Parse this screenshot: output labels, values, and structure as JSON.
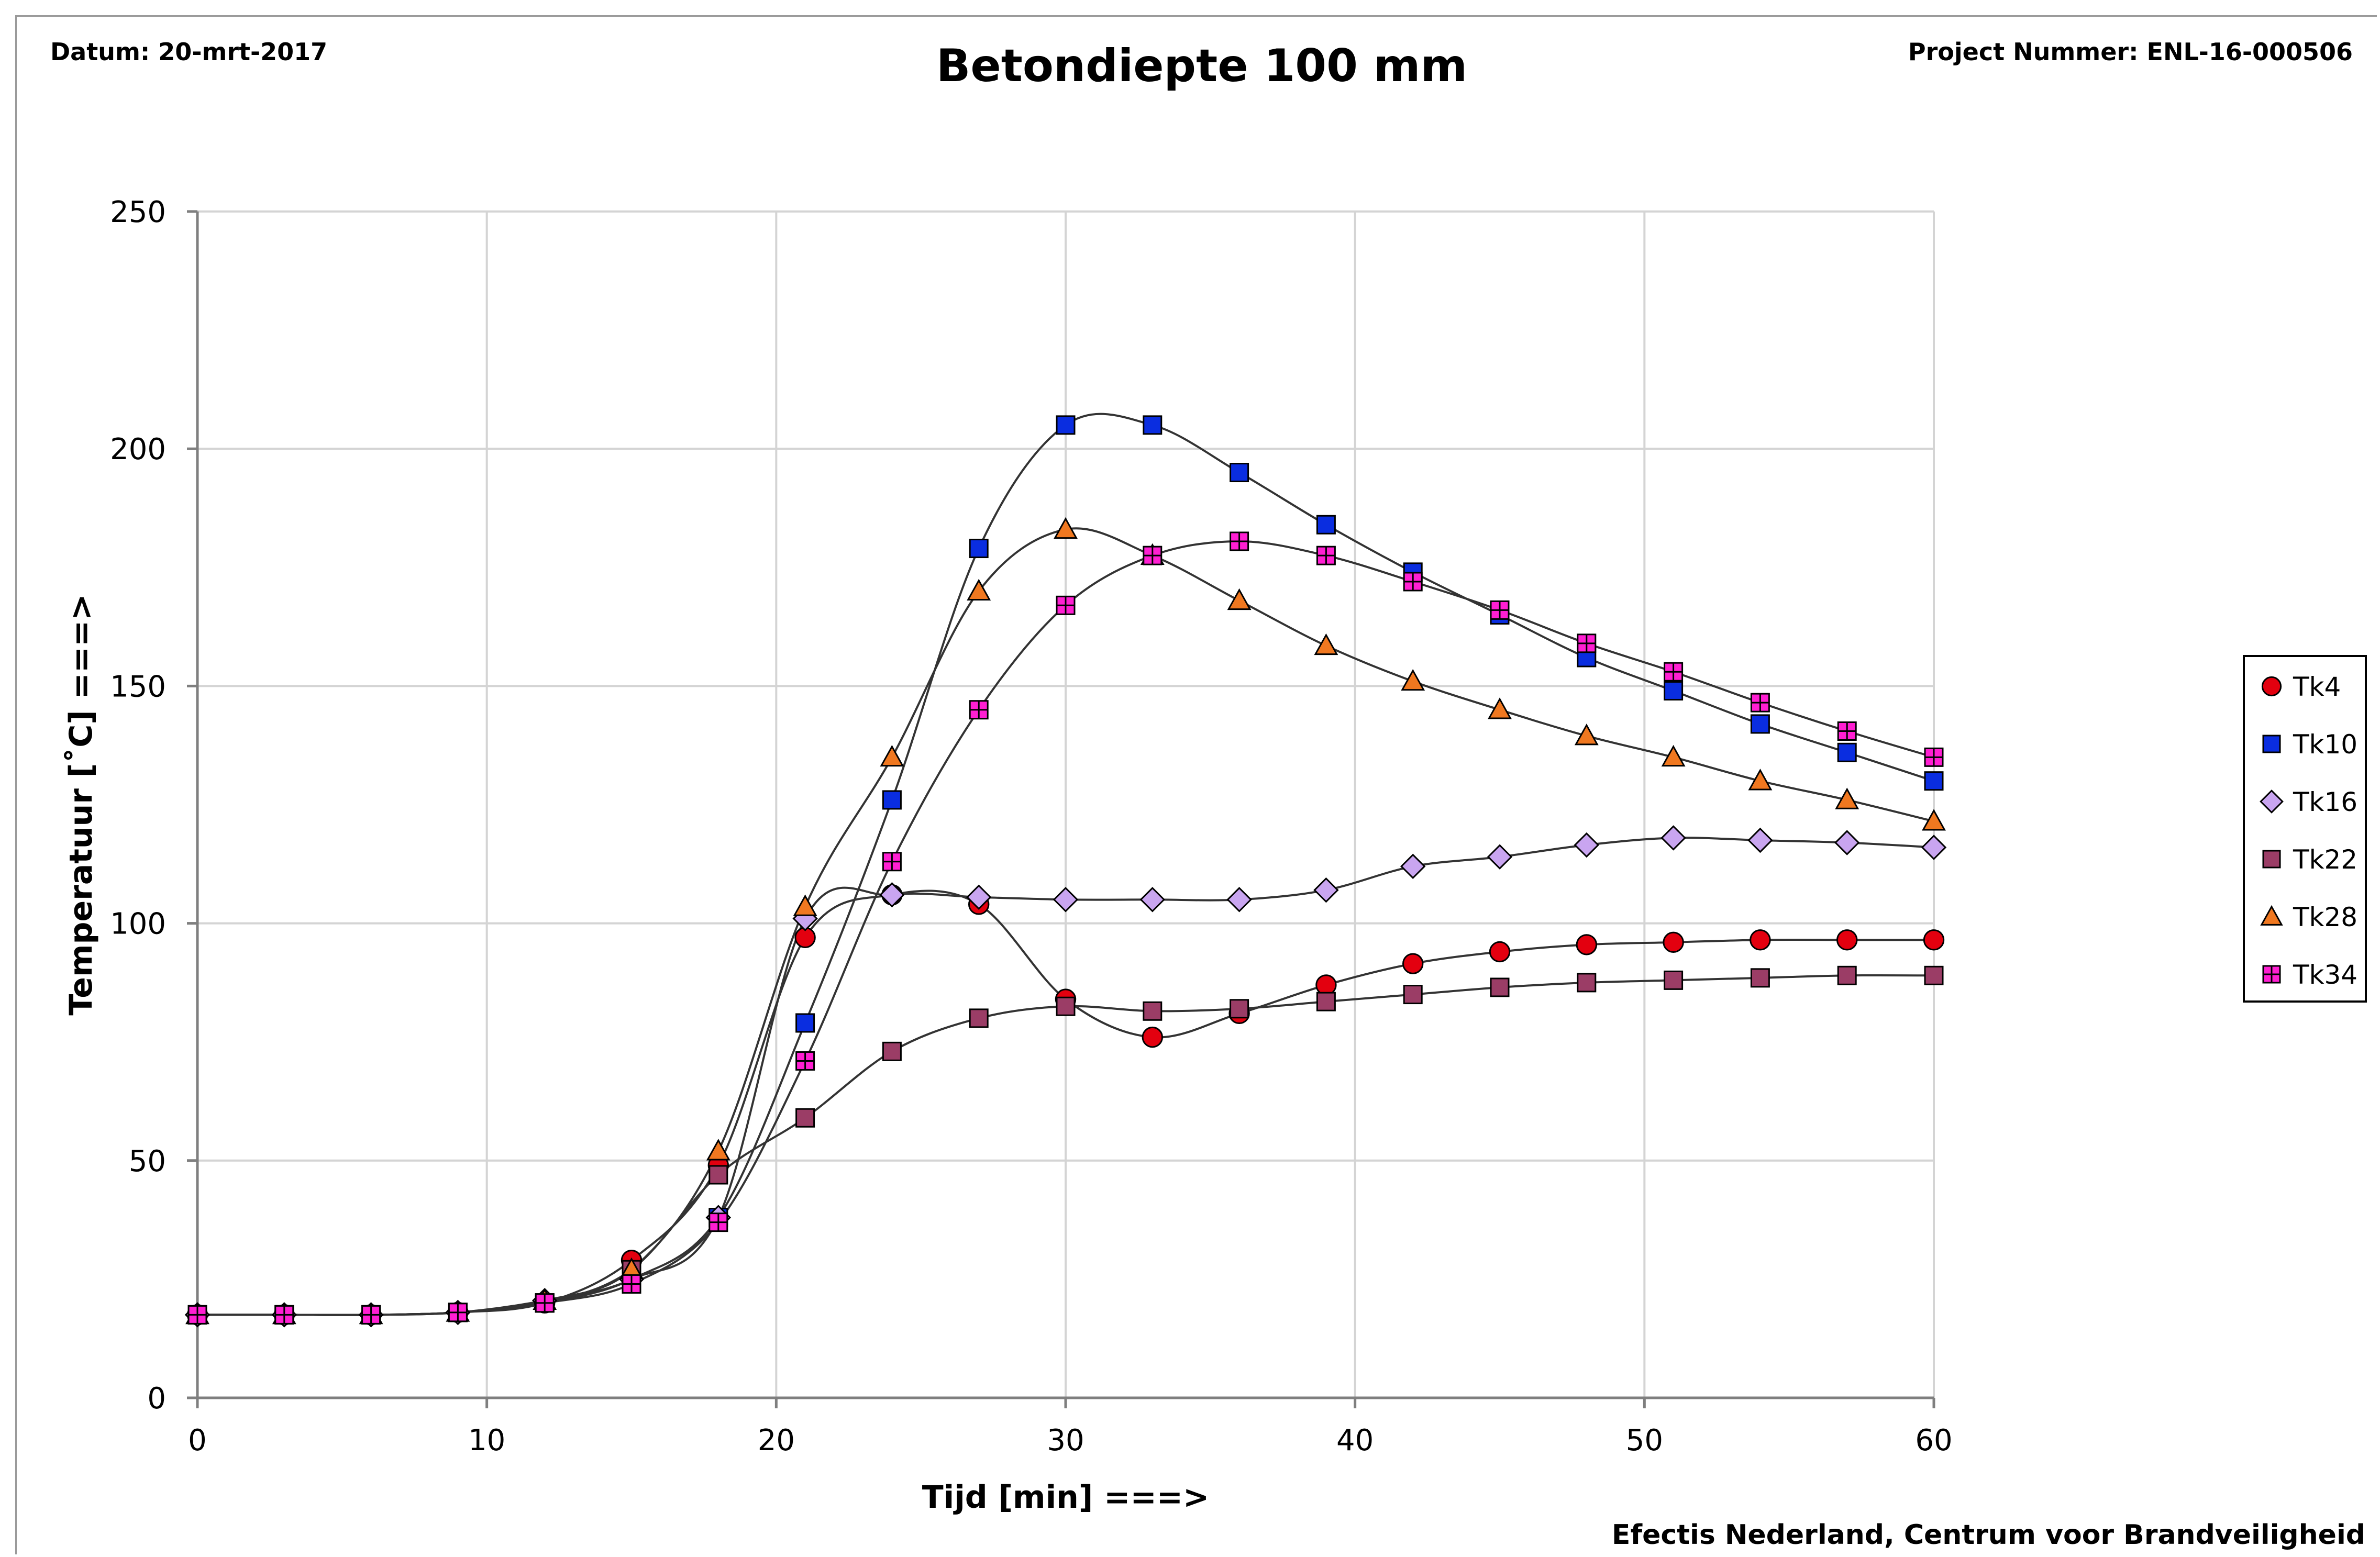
{
  "header": {
    "date": "Datum: 20-mrt-2017",
    "project": "Project Nummer: ENL-16-000506",
    "footer": "Efectis Nederland, Centrum voor Brandveiligheid"
  },
  "chart_data": {
    "type": "line",
    "title": "Betondiepte 100 mm",
    "xlabel": "Tijd [min] ===>",
    "ylabel": "Temperatuur [˚C] ===>",
    "xlim": [
      0,
      60
    ],
    "ylim": [
      0,
      250
    ],
    "xticks": [
      0,
      10,
      20,
      30,
      40,
      50,
      60
    ],
    "yticks": [
      0,
      50,
      100,
      150,
      200,
      250
    ],
    "grid": true,
    "legend_position": "right",
    "x": [
      0,
      3,
      6,
      9,
      12,
      15,
      18,
      21,
      24,
      27,
      30,
      33,
      36,
      39,
      42,
      45,
      48,
      51,
      54,
      57,
      60
    ],
    "series": [
      {
        "name": "Tk4",
        "marker": "circle",
        "color": "#e3000f",
        "values": [
          17.5,
          17.5,
          17.5,
          18,
          20,
          29,
          49,
          97,
          106,
          104,
          84,
          76,
          81,
          87,
          91.5,
          94,
          95.5,
          96,
          96.5,
          96.5,
          96.5
        ]
      },
      {
        "name": "Tk10",
        "marker": "square",
        "color": "#0a2de0",
        "values": [
          17.5,
          17.5,
          17.5,
          18,
          20,
          25,
          38,
          79,
          126,
          179,
          205,
          205,
          195,
          184,
          174,
          165,
          156,
          149,
          142,
          136,
          130
        ]
      },
      {
        "name": "Tk16",
        "marker": "diamond",
        "color": "#c9a5f0",
        "values": [
          17.5,
          17.5,
          17.5,
          18,
          20.5,
          25,
          38,
          101,
          106,
          105.5,
          105,
          105,
          105,
          107,
          112,
          114,
          116.5,
          118,
          117.5,
          117,
          116
        ]
      },
      {
        "name": "Tk22",
        "marker": "square",
        "color": "#9b3d66",
        "values": [
          17.5,
          17.5,
          17.5,
          18,
          20,
          27,
          47,
          59,
          73,
          80,
          82.5,
          81.5,
          82,
          83.5,
          85,
          86.5,
          87.5,
          88,
          88.5,
          89,
          89
        ]
      },
      {
        "name": "Tk28",
        "marker": "triangle",
        "color": "#f07820",
        "values": [
          17.5,
          17.5,
          17.5,
          18,
          20.5,
          27,
          52,
          103.5,
          135,
          170,
          183,
          177.5,
          168,
          158.5,
          151,
          145,
          139.5,
          135,
          130,
          126,
          121.5
        ]
      },
      {
        "name": "Tk34",
        "marker": "square-cross",
        "color": "#ff1fd2",
        "values": [
          17.5,
          17.5,
          17.5,
          18,
          20,
          24,
          37,
          71,
          113,
          145,
          167,
          177.5,
          180.5,
          177.5,
          172,
          166,
          159,
          153,
          146.5,
          140.5,
          135
        ]
      }
    ]
  }
}
